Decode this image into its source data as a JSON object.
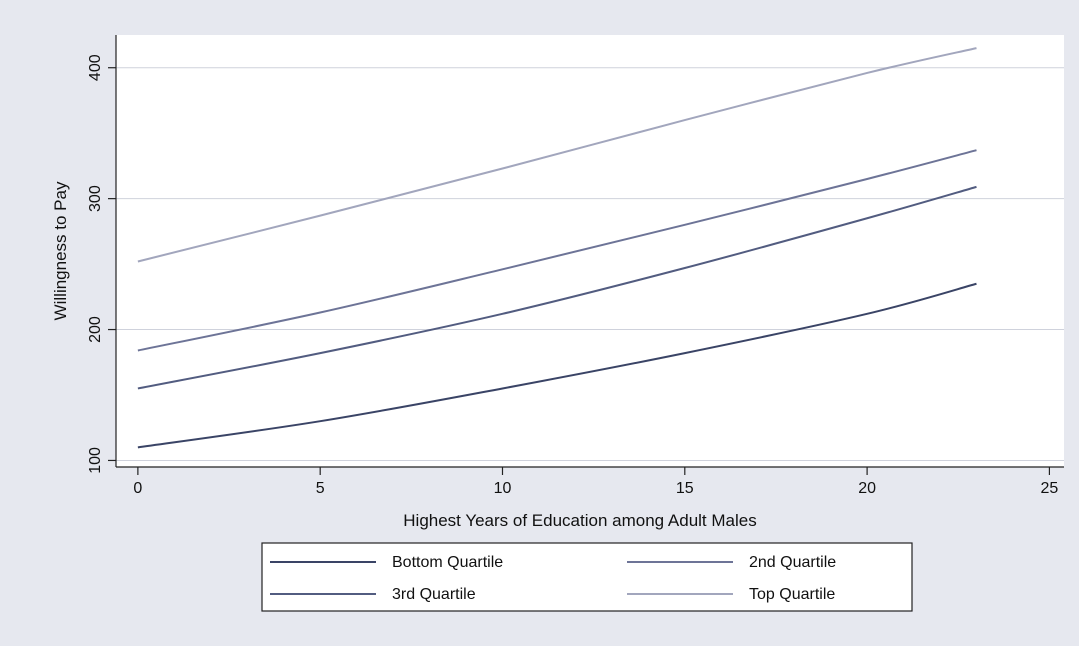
{
  "chart_data": {
    "type": "line",
    "title": "",
    "xlabel": "Highest Years of Education among Adult Males",
    "ylabel": "Willingness to Pay",
    "xlim": [
      -0.6,
      25.4
    ],
    "ylim": [
      95,
      425
    ],
    "xticks": [
      0,
      5,
      10,
      15,
      20,
      25
    ],
    "yticks": [
      100,
      200,
      300,
      400
    ],
    "grid": "horizontal",
    "legend_position": "bottom",
    "series": [
      {
        "name": "Bottom Quartile",
        "color": "#3a4466",
        "x": [
          0,
          5,
          10,
          15,
          20,
          23
        ],
        "y": [
          110,
          130,
          155,
          182,
          212,
          235
        ]
      },
      {
        "name": "2nd Quartile",
        "color": "#6d7497",
        "x": [
          0,
          5,
          10,
          15,
          20,
          23
        ],
        "y": [
          184,
          213,
          246,
          280,
          315,
          337
        ]
      },
      {
        "name": "3rd Quartile",
        "color": "#525c80",
        "x": [
          0,
          5,
          10,
          15,
          20,
          23
        ],
        "y": [
          155,
          182,
          212,
          247,
          285,
          309
        ]
      },
      {
        "name": "Top Quartile",
        "color": "#a2a6bd",
        "x": [
          0,
          5,
          10,
          15,
          20,
          23
        ],
        "y": [
          252,
          287,
          323,
          360,
          396,
          415
        ]
      }
    ],
    "legend_order": [
      0,
      1,
      2,
      3
    ]
  }
}
